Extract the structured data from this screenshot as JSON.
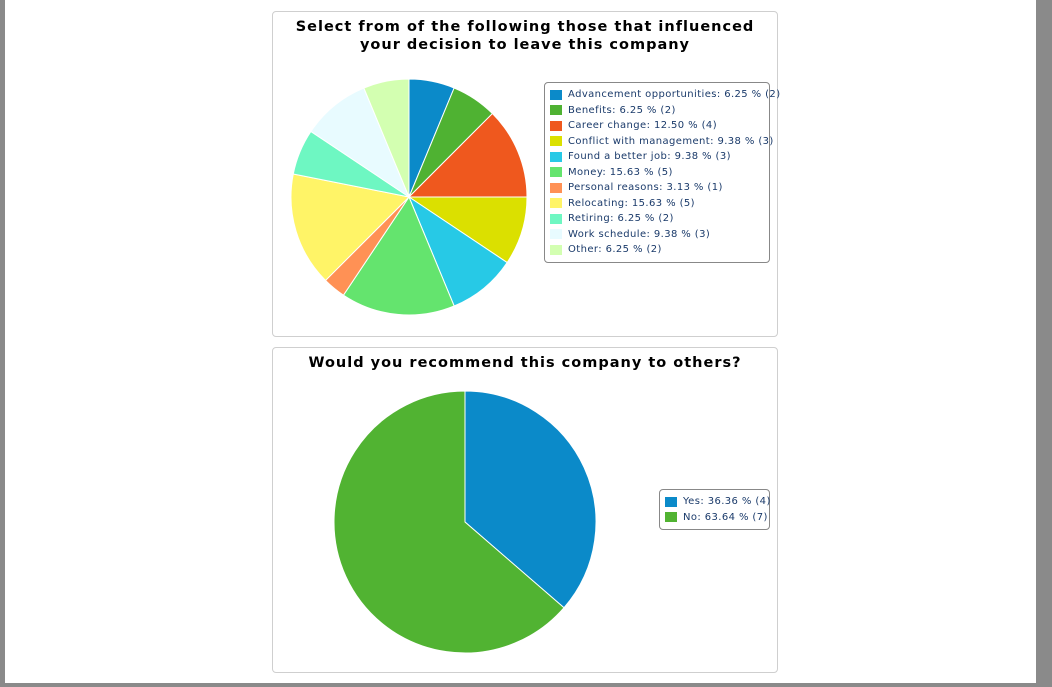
{
  "chart_data": [
    {
      "type": "pie",
      "title": "Select from of the following those that influenced your decision to leave this company",
      "legend_position": "right",
      "slices": [
        {
          "label": "Advancement opportunities: 6.25 % (2)",
          "name": "Advancement opportunities",
          "percent": 6.25,
          "count": 2,
          "color": "#0b8ac9"
        },
        {
          "label": "Benefits: 6.25 % (2)",
          "name": "Benefits",
          "percent": 6.25,
          "count": 2,
          "color": "#4fb232"
        },
        {
          "label": "Career change: 12.50 % (4)",
          "name": "Career change",
          "percent": 12.5,
          "count": 4,
          "color": "#ef581e"
        },
        {
          "label": "Conflict with management: 9.38 % (3)",
          "name": "Conflict with management",
          "percent": 9.38,
          "count": 3,
          "color": "#dbe000"
        },
        {
          "label": "Found a better job: 9.38 % (3)",
          "name": "Found a better job",
          "percent": 9.38,
          "count": 3,
          "color": "#27c9e6"
        },
        {
          "label": "Money: 15.63 % (5)",
          "name": "Money",
          "percent": 15.63,
          "count": 5,
          "color": "#64e46e"
        },
        {
          "label": "Personal reasons: 3.13 % (1)",
          "name": "Personal reasons",
          "percent": 3.13,
          "count": 1,
          "color": "#ff9155"
        },
        {
          "label": "Relocating: 15.63 % (5)",
          "name": "Relocating",
          "percent": 15.63,
          "count": 5,
          "color": "#fff467"
        },
        {
          "label": "Retiring: 6.25 % (2)",
          "name": "Retiring",
          "percent": 6.25,
          "count": 2,
          "color": "#6ef7c2"
        },
        {
          "label": "Work schedule: 9.38 % (3)",
          "name": "Work schedule",
          "percent": 9.38,
          "count": 3,
          "color": "#e8fbff"
        },
        {
          "label": "Other: 6.25 % (2)",
          "name": "Other",
          "percent": 6.25,
          "count": 2,
          "color": "#d3ffb1"
        }
      ]
    },
    {
      "type": "pie",
      "title": "Would you recommend this company to others?",
      "legend_position": "right",
      "slices": [
        {
          "label": "Yes: 36.36 % (4)",
          "name": "Yes",
          "percent": 36.36,
          "count": 4,
          "color": "#0b8ac9"
        },
        {
          "label": "No: 63.64 % (7)",
          "name": "No",
          "percent": 63.64,
          "count": 7,
          "color": "#51b332"
        }
      ]
    }
  ]
}
